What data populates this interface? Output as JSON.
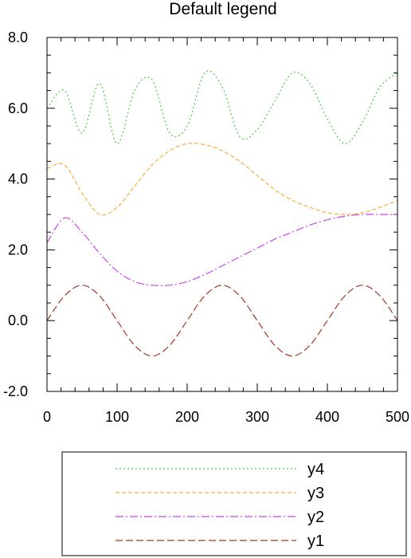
{
  "chart_data": {
    "type": "line",
    "title": "Default legend",
    "xlabel": "",
    "ylabel": "",
    "xlim": [
      0,
      500
    ],
    "ylim": [
      -2,
      8
    ],
    "x_ticks": [
      "0",
      "100",
      "200",
      "300",
      "400",
      "500"
    ],
    "y_ticks": [
      "-2.0",
      "0.0",
      "2.0",
      "4.0",
      "6.0",
      "8.0"
    ],
    "grid": false,
    "legend_position": "bottom",
    "x": [
      0,
      25,
      50,
      75,
      100,
      125,
      150,
      175,
      200,
      225,
      250,
      275,
      300,
      325,
      350,
      375,
      400,
      425,
      450,
      475,
      500
    ],
    "series": [
      {
        "name": "y4",
        "color": "#44cc44",
        "dash": "2,3",
        "values": [
          6.0,
          6.5,
          5.3,
          6.7,
          5.0,
          6.5,
          6.8,
          5.3,
          5.5,
          7.0,
          6.6,
          5.2,
          5.4,
          6.2,
          7.0,
          6.7,
          5.7,
          5.0,
          5.6,
          6.6,
          7.0
        ]
      },
      {
        "name": "y3",
        "color": "#ffaa33",
        "dash": "5,3",
        "values": [
          4.3,
          4.4,
          3.6,
          3.0,
          3.2,
          3.8,
          4.4,
          4.8,
          5.0,
          4.97,
          4.8,
          4.5,
          4.1,
          3.7,
          3.4,
          3.2,
          3.05,
          3.0,
          3.05,
          3.2,
          3.4
        ]
      },
      {
        "name": "y2",
        "color": "#cc44ee",
        "dash": "10,3,2,3",
        "values": [
          2.2,
          2.9,
          2.5,
          1.9,
          1.4,
          1.1,
          1.0,
          1.0,
          1.1,
          1.3,
          1.55,
          1.8,
          2.05,
          2.3,
          2.5,
          2.7,
          2.85,
          2.95,
          3.0,
          3.0,
          3.0
        ]
      },
      {
        "name": "y1",
        "color": "#aa3322",
        "dash": "9,4",
        "values": [
          0.0,
          0.7,
          1.0,
          0.7,
          0.0,
          -0.7,
          -1.0,
          -0.7,
          0.0,
          0.7,
          1.0,
          0.7,
          0.0,
          -0.7,
          -1.0,
          -0.7,
          0.0,
          0.7,
          1.0,
          0.7,
          0.0
        ]
      }
    ]
  }
}
